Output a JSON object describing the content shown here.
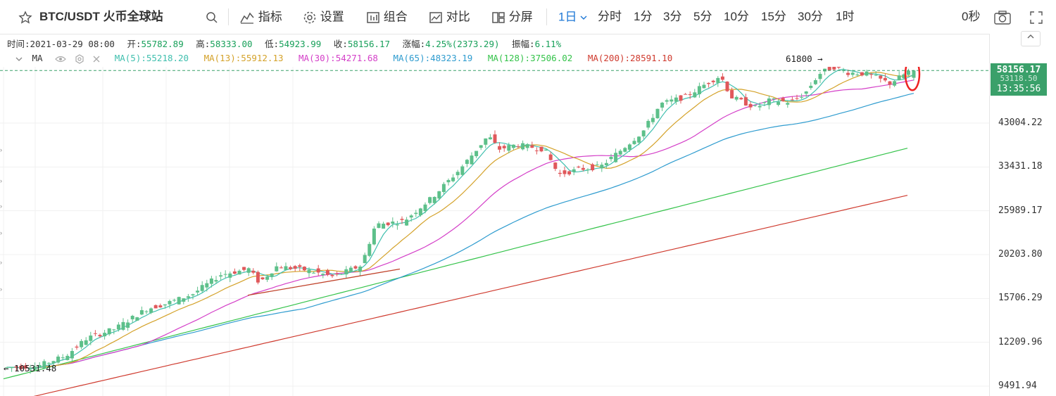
{
  "toolbar": {
    "symbol": "BTC/USDT 火币全球站",
    "indicators": "指标",
    "settings": "设置",
    "combo": "组合",
    "compare": "对比",
    "split": "分屏",
    "active_period": "1日",
    "periods": [
      "分时",
      "1分",
      "3分",
      "5分",
      "10分",
      "15分",
      "30分",
      "1时"
    ],
    "countdown": "0秒"
  },
  "info": {
    "time_label": "时间:",
    "time": "2021-03-29 08:00",
    "open_label": "开:",
    "open": "55782.89",
    "high_label": "高:",
    "high": "58333.00",
    "low_label": "低:",
    "low": "54923.99",
    "close_label": "收:",
    "close": "58156.17",
    "change_label": "涨幅:",
    "change": "4.25%(2373.29)",
    "amplitude_label": "振幅:",
    "amplitude": "6.11%"
  },
  "ma_legend": {
    "title": "MA",
    "items": [
      {
        "label": "MA(5):55218.20",
        "color": "#3fbfae"
      },
      {
        "label": "MA(13):55912.13",
        "color": "#d4a22a"
      },
      {
        "label": "MA(30):54271.68",
        "color": "#d43fc8"
      },
      {
        "label": "MA(65):48323.19",
        "color": "#2f9ccf"
      },
      {
        "label": "MA(128):37506.02",
        "color": "#34c34a"
      },
      {
        "label": "MA(200):28591.10",
        "color": "#cf3a2e"
      }
    ]
  },
  "price_axis": {
    "labels": [
      "43004.22",
      "33431.18",
      "25989.17",
      "20203.80",
      "15706.29",
      "12209.96",
      "9491.94"
    ],
    "last_price": "58156.17",
    "hidden_tag": "53118.50",
    "countdown": "13:35:56"
  },
  "annotations": {
    "high_marker": "61800",
    "low_marker": "10531.48"
  },
  "colors": {
    "up": "#5dc08a",
    "down": "#e0585b",
    "accent": "#1e78d6",
    "grid": "#f1f1f1",
    "circle": "#ee2222"
  },
  "chart_data": {
    "type": "candlestick",
    "scale": "log",
    "y_ticks": [
      43004.22,
      33431.18,
      25989.17,
      20203.8,
      15706.29,
      12209.96,
      9491.94
    ],
    "last_close": 58156.17,
    "highest_marked": 61800,
    "lowest_marked": 10531.48,
    "last_candle": {
      "date": "2021-03-29",
      "open": 55782.89,
      "high": 58333.0,
      "low": 54923.99,
      "close": 58156.17
    },
    "ma_values": {
      "MA5": 55218.2,
      "MA13": 55912.13,
      "MA30": 54271.68,
      "MA65": 48323.19,
      "MA128": 37506.02,
      "MA200": 28591.1
    }
  }
}
